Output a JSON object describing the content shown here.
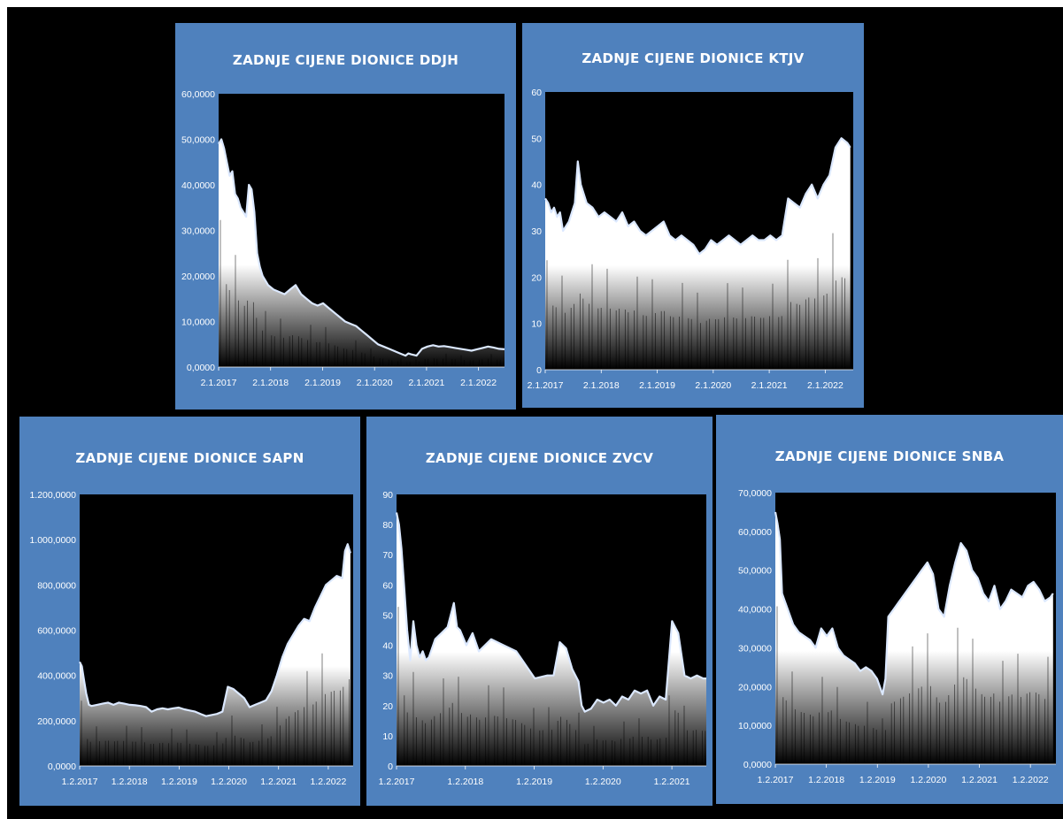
{
  "chart_data": [
    {
      "type": "area",
      "title": "ZADNJE CIJENE DIONICE DDJH",
      "yticks": [
        "0,0000",
        "10,0000",
        "20,0000",
        "30,0000",
        "40,0000",
        "50,0000",
        "60,0000"
      ],
      "ylim": [
        0,
        60
      ],
      "xticks": [
        "2.1.2017",
        "2.1.2018",
        "2.1.2019",
        "2.1.2020",
        "2.1.2021",
        "2.1.2022"
      ],
      "xlim": [
        2017.0,
        2022.2
      ],
      "x": [
        2017.0,
        2017.05,
        2017.1,
        2017.15,
        2017.2,
        2017.25,
        2017.3,
        2017.35,
        2017.4,
        2017.45,
        2017.5,
        2017.55,
        2017.6,
        2017.65,
        2017.7,
        2017.75,
        2017.8,
        2017.85,
        2017.9,
        2017.95,
        2018.0,
        2018.1,
        2018.2,
        2018.3,
        2018.4,
        2018.5,
        2018.6,
        2018.7,
        2018.8,
        2018.9,
        2019.0,
        2019.1,
        2019.2,
        2019.3,
        2019.4,
        2019.5,
        2019.6,
        2019.7,
        2019.8,
        2019.9,
        2020.0,
        2020.1,
        2020.2,
        2020.3,
        2020.4,
        2020.45,
        2020.5,
        2020.6,
        2020.7,
        2020.8,
        2020.9,
        2021.0,
        2021.1,
        2021.2,
        2021.3,
        2021.4,
        2021.5,
        2021.6,
        2021.7,
        2021.8,
        2021.9,
        2022.0,
        2022.1,
        2022.2
      ],
      "y": [
        49,
        50,
        48,
        45,
        42,
        43,
        38,
        37,
        35,
        34,
        33,
        40,
        39,
        34,
        25,
        22,
        20,
        19,
        18,
        17.5,
        17,
        16.5,
        16,
        17,
        18,
        16,
        15,
        14,
        13.5,
        14,
        13,
        12,
        11,
        10,
        9.5,
        9,
        8,
        7,
        6,
        5,
        4.5,
        4,
        3.5,
        3,
        2.5,
        3,
        2.8,
        2.5,
        4,
        4.5,
        4.8,
        4.5,
        4.6,
        4.4,
        4.2,
        4.0,
        3.8,
        3.6,
        3.9,
        4.2,
        4.5,
        4.3,
        4.0,
        3.9
      ]
    },
    {
      "type": "area",
      "title": "ZADNJE CIJENE DIONICE KTJV",
      "yticks": [
        "0",
        "10",
        "20",
        "30",
        "40",
        "50",
        "60"
      ],
      "ylim": [
        0,
        60
      ],
      "xticks": [
        "2.1.2017",
        "2.1.2018",
        "2.1.2019",
        "2.1.2020",
        "2.1.2021",
        "2.1.2022"
      ],
      "xlim": [
        2017.0,
        2022.2
      ],
      "x": [
        2017.0,
        2017.05,
        2017.1,
        2017.15,
        2017.2,
        2017.25,
        2017.3,
        2017.35,
        2017.4,
        2017.45,
        2017.5,
        2017.55,
        2017.6,
        2017.7,
        2017.8,
        2017.9,
        2018.0,
        2018.1,
        2018.2,
        2018.3,
        2018.4,
        2018.5,
        2018.6,
        2018.7,
        2018.8,
        2018.9,
        2019.0,
        2019.1,
        2019.2,
        2019.3,
        2019.4,
        2019.5,
        2019.6,
        2019.7,
        2019.8,
        2019.9,
        2020.0,
        2020.1,
        2020.2,
        2020.3,
        2020.4,
        2020.5,
        2020.6,
        2020.7,
        2020.8,
        2020.9,
        2021.0,
        2021.1,
        2021.2,
        2021.3,
        2021.4,
        2021.5,
        2021.6,
        2021.7,
        2021.8,
        2021.9,
        2022.0,
        2022.1,
        2022.15
      ],
      "y": [
        37,
        36,
        34,
        35,
        33,
        34,
        30,
        31,
        32,
        34,
        36,
        45,
        40,
        36,
        35,
        33,
        34,
        33,
        32,
        34,
        31,
        32,
        30,
        29,
        30,
        31,
        32,
        29,
        28,
        29,
        28,
        27,
        25,
        26,
        28,
        27,
        28,
        29,
        28,
        27,
        28,
        29,
        28,
        28,
        29,
        28,
        29,
        37,
        36,
        35,
        38,
        40,
        37,
        40,
        42,
        48,
        50,
        49,
        48
      ]
    },
    {
      "type": "area",
      "title": "ZADNJE CIJENE DIONICE SAPN",
      "yticks": [
        "0,0000",
        "200,0000",
        "400,0000",
        "600,0000",
        "800,0000",
        "1.000,0000",
        "1.200,0000"
      ],
      "ylim": [
        0,
        1200
      ],
      "xticks": [
        "1.2.2017",
        "1.2.2018",
        "1.2.2019",
        "1.2.2020",
        "1.2.2021",
        "1.2.2022"
      ],
      "xlim": [
        2017.08,
        2022.1
      ],
      "x": [
        2017.08,
        2017.12,
        2017.16,
        2017.2,
        2017.25,
        2017.3,
        2017.4,
        2017.5,
        2017.6,
        2017.7,
        2017.8,
        2017.9,
        2018.0,
        2018.1,
        2018.2,
        2018.3,
        2018.4,
        2018.5,
        2018.6,
        2018.7,
        2018.8,
        2018.9,
        2019.0,
        2019.1,
        2019.2,
        2019.3,
        2019.4,
        2019.5,
        2019.6,
        2019.7,
        2019.8,
        2019.9,
        2020.0,
        2020.1,
        2020.2,
        2020.3,
        2020.4,
        2020.5,
        2020.6,
        2020.7,
        2020.8,
        2020.9,
        2021.0,
        2021.1,
        2021.2,
        2021.3,
        2021.4,
        2021.5,
        2021.6,
        2021.7,
        2021.8,
        2021.9,
        2021.95,
        2022.0,
        2022.05
      ],
      "y": [
        460,
        440,
        380,
        320,
        270,
        265,
        270,
        275,
        280,
        270,
        280,
        275,
        270,
        268,
        265,
        260,
        240,
        250,
        255,
        250,
        255,
        258,
        250,
        245,
        240,
        230,
        220,
        225,
        230,
        240,
        350,
        340,
        320,
        300,
        260,
        270,
        280,
        290,
        330,
        400,
        480,
        540,
        580,
        620,
        650,
        640,
        700,
        750,
        800,
        820,
        840,
        830,
        950,
        980,
        940
      ]
    },
    {
      "type": "area",
      "title": "ZADNJE CIJENE DIONICE ZVCV",
      "yticks": [
        "0",
        "10",
        "20",
        "30",
        "40",
        "50",
        "60",
        "70",
        "80",
        "90"
      ],
      "ylim": [
        0,
        90
      ],
      "xticks": [
        "1.2.2017",
        "1.2.2018",
        "1.2.2019",
        "1.2.2020",
        "1.2.2021"
      ],
      "xlim": [
        2017.08,
        2022.05
      ],
      "x": [
        2017.08,
        2017.12,
        2017.16,
        2017.2,
        2017.25,
        2017.3,
        2017.35,
        2017.4,
        2017.45,
        2017.5,
        2017.55,
        2017.6,
        2017.7,
        2017.8,
        2017.9,
        2018.0,
        2018.05,
        2018.1,
        2018.2,
        2018.3,
        2018.4,
        2018.5,
        2018.6,
        2018.8,
        2019.0,
        2019.1,
        2019.3,
        2019.5,
        2019.6,
        2019.7,
        2019.8,
        2019.9,
        2020.0,
        2020.05,
        2020.1,
        2020.2,
        2020.3,
        2020.4,
        2020.5,
        2020.6,
        2020.7,
        2020.8,
        2020.9,
        2021.0,
        2021.1,
        2021.2,
        2021.3,
        2021.4,
        2021.5,
        2021.55,
        2021.6,
        2021.7,
        2021.8,
        2021.9,
        2022.0,
        2022.05
      ],
      "y": [
        84,
        80,
        72,
        60,
        45,
        35,
        48,
        40,
        36,
        38,
        35,
        36,
        42,
        44,
        46,
        54,
        46,
        45,
        40,
        44,
        38,
        40,
        42,
        40,
        38,
        35,
        29,
        30,
        30,
        41,
        39,
        32,
        28,
        20,
        18,
        19,
        22,
        21,
        22,
        20,
        23,
        22,
        25,
        24,
        25,
        20,
        23,
        22,
        48,
        46,
        44,
        30,
        29,
        30,
        29,
        29
      ]
    },
    {
      "type": "area",
      "title": "ZADNJE CIJENE DIONICE SNBA",
      "yticks": [
        "0,0000",
        "10,0000",
        "20,0000",
        "30,0000",
        "40,0000",
        "50,0000",
        "60,0000",
        "70,0000"
      ],
      "ylim": [
        0,
        70
      ],
      "xticks": [
        "1.2.2017",
        "1.2.2018",
        "1.2.2019",
        "1.2.2020",
        "1.2.2021",
        "1.2.2022"
      ],
      "xlim": [
        2017.08,
        2022.1
      ],
      "x": [
        2017.08,
        2017.12,
        2017.16,
        2017.2,
        2017.25,
        2017.3,
        2017.35,
        2017.4,
        2017.5,
        2017.6,
        2017.7,
        2017.8,
        2017.9,
        2018.0,
        2018.1,
        2018.2,
        2018.3,
        2018.4,
        2018.5,
        2018.6,
        2018.7,
        2018.8,
        2018.9,
        2019.0,
        2019.05,
        2019.1,
        2019.2,
        2019.3,
        2019.4,
        2019.5,
        2019.6,
        2019.7,
        2019.8,
        2019.9,
        2020.0,
        2020.1,
        2020.2,
        2020.3,
        2020.4,
        2020.5,
        2020.6,
        2020.7,
        2020.8,
        2020.9,
        2021.0,
        2021.1,
        2021.2,
        2021.3,
        2021.4,
        2021.5,
        2021.6,
        2021.7,
        2021.8,
        2021.9,
        2022.0,
        2022.05
      ],
      "y": [
        65,
        62,
        58,
        44,
        42,
        40,
        38,
        36,
        34,
        33,
        32,
        30,
        35,
        33,
        35,
        30,
        28,
        27,
        26,
        24,
        25,
        24,
        22,
        18,
        22,
        38,
        40,
        42,
        44,
        46,
        48,
        50,
        52,
        49,
        40,
        38,
        46,
        52,
        57,
        55,
        50,
        48,
        44,
        42,
        46,
        40,
        42,
        45,
        44,
        43,
        46,
        47,
        45,
        42,
        43,
        44
      ]
    }
  ]
}
